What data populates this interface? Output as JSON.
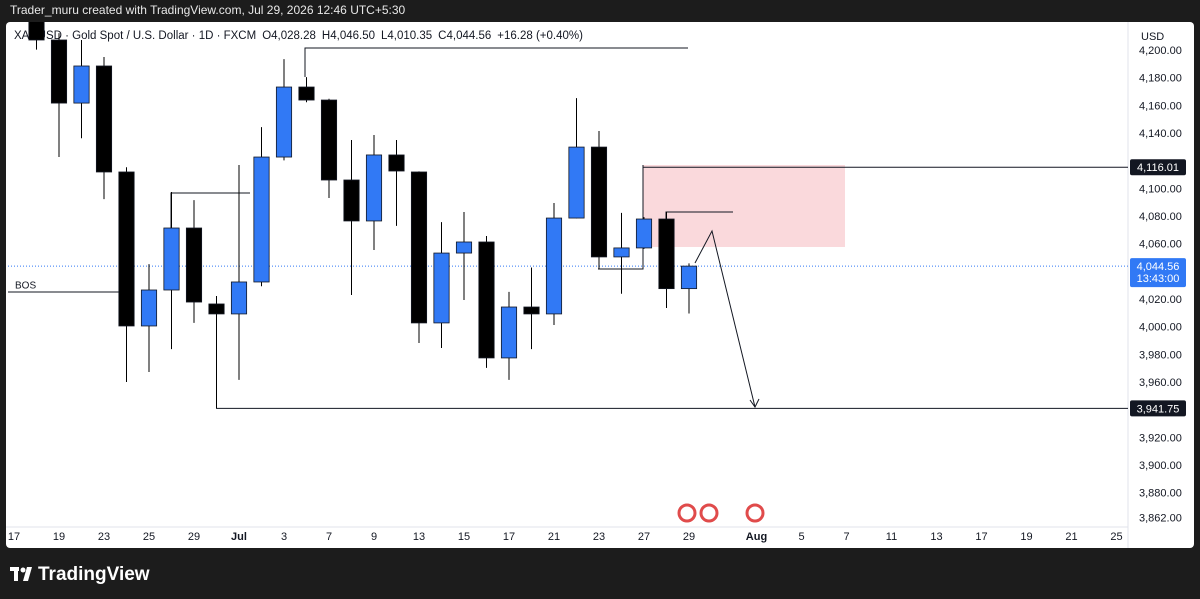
{
  "header": {
    "credit": "Trader_muru created with TradingView.com, Jul 29, 2026 12:46 UTC+5:30"
  },
  "footer": {
    "brand": "TradingView"
  },
  "chart_data": {
    "type": "candlestick",
    "title": "XAUUSD · Gold Spot / U.S. Dollar · 1D · FXCM",
    "ohlc": [
      "O4,028.28",
      "H4,046.50",
      "L4,010.35",
      "C4,044.56"
    ],
    "change": "+16.28 (+0.40%)",
    "currency": "USD",
    "annotations": [
      {
        "text": "BOS"
      }
    ],
    "categories": [
      "17",
      null,
      "19",
      null,
      "23",
      null,
      "25",
      null,
      "29",
      null,
      "Jul",
      null,
      "3",
      null,
      "7",
      null,
      "9",
      null,
      "13",
      null,
      "15",
      null,
      "17",
      null,
      "21",
      null,
      "23",
      null,
      "27",
      null,
      "29",
      null,
      null,
      "Aug",
      null,
      "5",
      null,
      "7",
      null,
      "11",
      null,
      "13",
      null,
      "17",
      null,
      "19",
      null,
      "21",
      null,
      "25"
    ],
    "open": [
      null,
      4235,
      4208,
      4162.4,
      4189.2,
      4112.6,
      4001.3,
      4027.3,
      4072.1,
      4017.2,
      4010,
      4033.1,
      4123.4,
      4174,
      4164.6,
      4106.8,
      4077.2,
      4124.9,
      4112.6,
      4003.5,
      4054,
      4062,
      3978.2,
      4015,
      4010,
      4079.3,
      4130.6,
      4051.2,
      4057.7,
      4078.6,
      4028.28,
      null,
      null,
      null,
      null,
      null,
      null,
      null,
      null,
      null,
      null,
      null,
      null,
      null,
      null,
      null,
      null,
      null,
      null,
      null
    ],
    "high": [
      null,
      4245,
      4213,
      4208,
      4195.7,
      4116,
      4046,
      4098.1,
      4092.3,
      4023,
      4117.6,
      4145,
      4194.2,
      4181.2,
      4165.5,
      4135.7,
      4139.3,
      4135.7,
      4113,
      4076.4,
      4083.7,
      4066.3,
      4025.9,
      4043.6,
      4090.2,
      4166,
      4142.2,
      4083,
      4080,
      4083.7,
      4046.5,
      null,
      null,
      null,
      null,
      null,
      null,
      null,
      null,
      null,
      null,
      null,
      null,
      null,
      null,
      null,
      null,
      null,
      null,
      null
    ],
    "low": [
      null,
      4201,
      4123.4,
      4137,
      4093,
      3960.8,
      3968,
      3984.6,
      4003.5,
      3942,
      3962.3,
      4030,
      4121,
      4163,
      4093.8,
      4023.7,
      4056.2,
      4073.6,
      3989,
      3985.4,
      4020.1,
      3971,
      3962.3,
      3984.6,
      4002,
      4079,
      4042.5,
      4024.6,
      4057,
      4014.3,
      4010.35,
      null,
      null,
      null,
      null,
      null,
      null,
      null,
      null,
      null,
      null,
      null,
      null,
      null,
      null,
      null,
      null,
      null,
      null,
      null
    ],
    "close": [
      null,
      4208,
      4162.4,
      4189.2,
      4112.6,
      4001.3,
      4027.3,
      4072.1,
      4018.6,
      4010,
      4033.1,
      4123.4,
      4174,
      4164.6,
      4106.8,
      4077.2,
      4124.9,
      4113.3,
      4003.5,
      4054,
      4062,
      3978.2,
      4015,
      4010,
      4079.3,
      4130.6,
      4051.2,
      4057.7,
      4078.6,
      4028.28,
      4044.56,
      null,
      null,
      null,
      null,
      null,
      null,
      null,
      null,
      null,
      null,
      null,
      null,
      null,
      null,
      null,
      null,
      null,
      null,
      null
    ],
    "up_color": "#3179f5",
    "down_color": "#000000",
    "wick_color": "#000000",
    "ylim": [
      3856,
      4221
    ],
    "yticks": [
      {
        "value": 4200,
        "label": "4,200.00"
      },
      {
        "value": 4180,
        "label": "4,180.00"
      },
      {
        "value": 4160,
        "label": "4,160.00"
      },
      {
        "value": 4140,
        "label": "4,140.00"
      },
      {
        "value": 4100,
        "label": "4,100.00"
      },
      {
        "value": 4080,
        "label": "4,080.00"
      },
      {
        "value": 4060,
        "label": "4,060.00"
      },
      {
        "value": 4020,
        "label": "4,020.00"
      },
      {
        "value": 4000,
        "label": "4,000.00"
      },
      {
        "value": 3980,
        "label": "3,980.00"
      },
      {
        "value": 3960,
        "label": "3,960.00"
      },
      {
        "value": 3920,
        "label": "3,920.00"
      },
      {
        "value": 3900,
        "label": "3,900.00"
      },
      {
        "value": 3880,
        "label": "3,880.00"
      },
      {
        "value": 3862,
        "label": "3,862.00"
      }
    ],
    "price_lines": [
      {
        "value": 4116.01,
        "label": "4,116.01"
      },
      {
        "value": 3941.75,
        "label": "3,941.75"
      }
    ],
    "last_price": {
      "value": 4044.56,
      "label": "4,044.56"
    },
    "countdown": "13:43:00",
    "grid": false
  }
}
